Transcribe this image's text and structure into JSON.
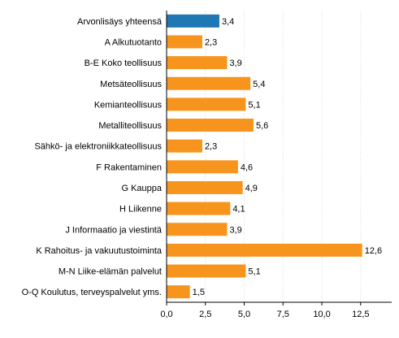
{
  "chart_data": {
    "type": "bar",
    "orientation": "horizontal",
    "categories": [
      "Arvonlisäys yhteensä",
      "A Alkutuotanto",
      "B-E Koko teollisuus",
      "Metsäteollisuus",
      "Kemianteollisuus",
      "Metalliteollisuus",
      "Sähkö- ja elektroniikkateollisuus",
      "F Rakentaminen",
      "G Kauppa",
      "H Liikenne",
      "J Informaatio ja viestintä",
      "K Rahoitus- ja vakuutustoiminta",
      "M-N Liike-elämän palvelut",
      "O-Q Koulutus, terveyspalvelut yms."
    ],
    "values": [
      3.4,
      2.3,
      3.9,
      5.4,
      5.1,
      5.6,
      2.3,
      4.6,
      4.9,
      4.1,
      3.9,
      12.6,
      5.1,
      1.5
    ],
    "value_labels": [
      "3,4",
      "2,3",
      "3,9",
      "5,4",
      "5,1",
      "5,6",
      "2,3",
      "4,6",
      "4,9",
      "4,1",
      "3,9",
      "12,6",
      "5,1",
      "1,5"
    ],
    "highlight_index": 0,
    "colors": {
      "highlight": "#1f77b4",
      "default": "#f7941d",
      "grid": "#d9d9d9",
      "axis": "#000000"
    },
    "xlim": [
      0,
      14.5
    ],
    "xticks": [
      0,
      2.5,
      5,
      7.5,
      10,
      12.5
    ],
    "xtick_labels": [
      "0,0",
      "2,5",
      "5,0",
      "7,5",
      "10,0",
      "12,5"
    ],
    "grid": "vertical",
    "title": "",
    "xlabel": "",
    "ylabel": ""
  }
}
